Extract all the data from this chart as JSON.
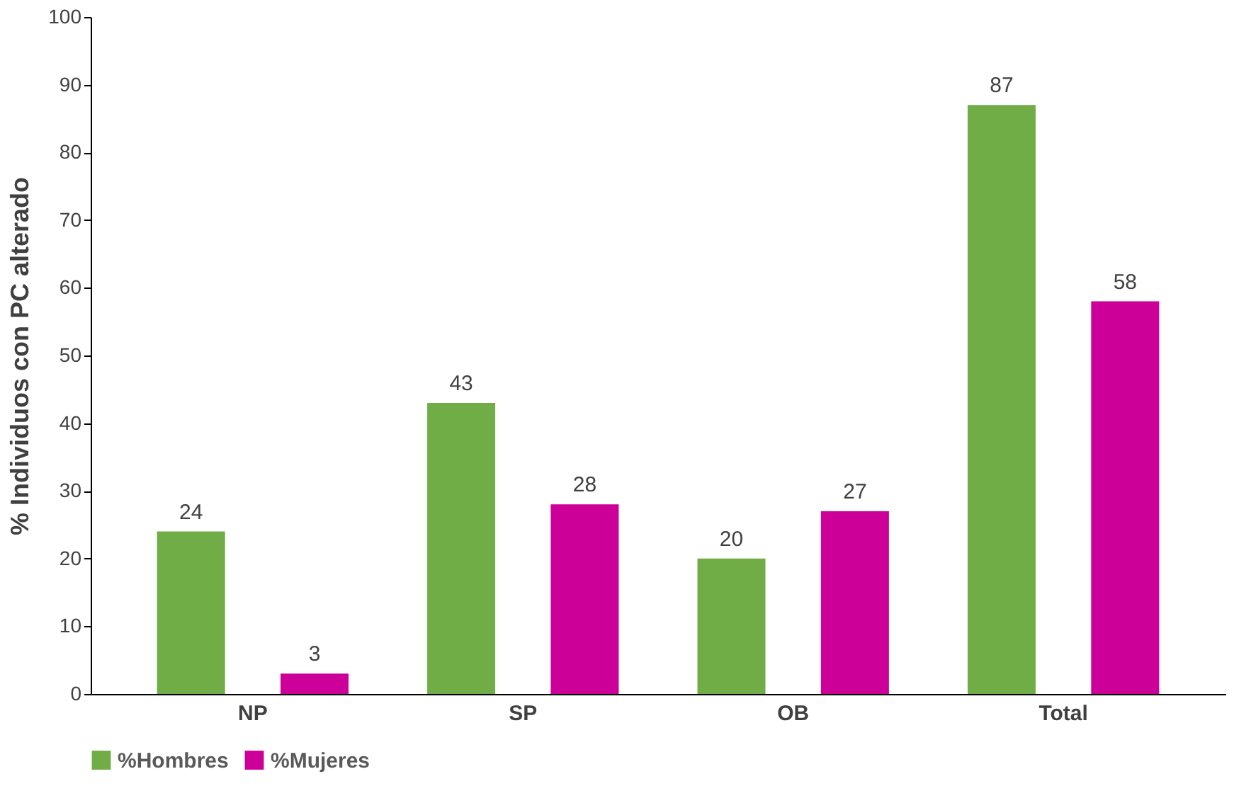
{
  "chart_data": {
    "type": "bar",
    "ylabel": "%  Individuos con PC alterado",
    "categories": [
      "NP",
      "SP",
      "OB",
      "Total"
    ],
    "series": [
      {
        "name": "%Hombres",
        "color": "#70ad47",
        "values": [
          24,
          43,
          20,
          87
        ]
      },
      {
        "name": "%Mujeres",
        "color": "#cc0099",
        "values": [
          3,
          28,
          27,
          58
        ]
      }
    ],
    "ylim": [
      0,
      100
    ],
    "yticks": [
      0,
      10,
      20,
      30,
      40,
      50,
      60,
      70,
      80,
      90,
      100
    ],
    "grid": false,
    "legend": "bottom",
    "data_labels": true
  }
}
